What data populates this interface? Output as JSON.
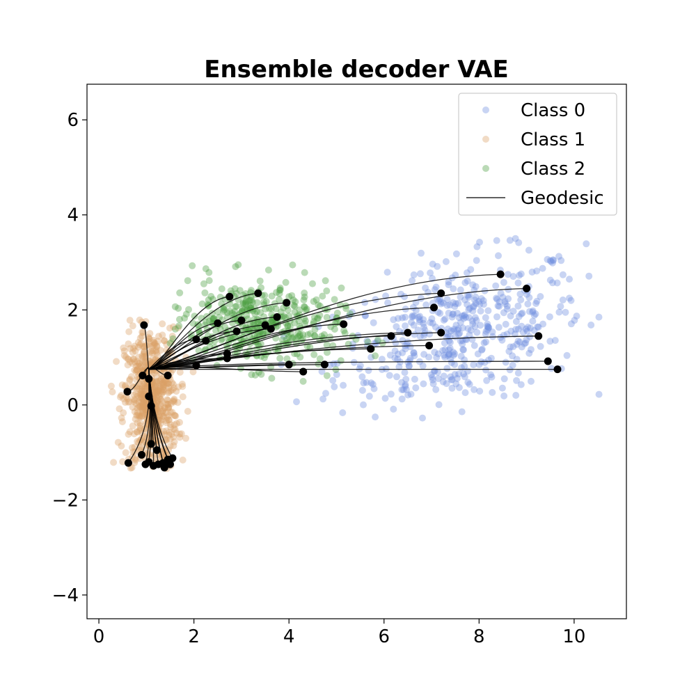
{
  "chart_data": {
    "type": "scatter",
    "title": "Ensemble decoder VAE",
    "xlabel": "",
    "ylabel": "",
    "xlim": [
      -0.25,
      11.1
    ],
    "ylim": [
      -4.5,
      6.75
    ],
    "x_ticks": [
      0,
      2,
      4,
      6,
      8,
      10
    ],
    "y_ticks": [
      -4,
      -2,
      0,
      2,
      4,
      6
    ],
    "x_tick_labels": [
      "0",
      "2",
      "4",
      "6",
      "8",
      "10"
    ],
    "y_tick_labels": [
      "−4",
      "−2",
      "0",
      "2",
      "4",
      "6"
    ],
    "grid": false,
    "legend_position": "top-right",
    "series": [
      {
        "name": "Class 0",
        "color": "#6f8fe0",
        "alpha": 0.38,
        "kind": "scatter",
        "count": 480,
        "distribution": {
          "x_center": 7.6,
          "x_spread": 1.3,
          "x_min": 3.3,
          "x_max": 10.6,
          "y_center": 1.5,
          "y_spread": 0.75,
          "y_min": -0.3,
          "y_max": 3.7,
          "slope": 0.22
        }
      },
      {
        "name": "Class 1",
        "color": "#d9a066",
        "alpha": 0.38,
        "kind": "scatter",
        "count": 650,
        "distribution": {
          "x_center": 1.1,
          "x_spread": 0.28,
          "x_min": 0.25,
          "x_max": 2.6,
          "y_center": 0.1,
          "y_spread": 0.75,
          "y_min": -1.35,
          "y_max": 1.85,
          "slope": 0
        }
      },
      {
        "name": "Class 2",
        "color": "#4a9e3e",
        "alpha": 0.38,
        "kind": "scatter",
        "count": 420,
        "distribution": {
          "x_center": 3.3,
          "x_spread": 0.9,
          "x_min": 1.5,
          "x_max": 7.0,
          "y_center": 1.7,
          "y_spread": 0.45,
          "y_min": -0.2,
          "y_max": 3.0,
          "slope": -0.08
        }
      },
      {
        "name": "Geodesic",
        "color": "#000000",
        "kind": "line"
      }
    ],
    "geodesics": {
      "hub": [
        1.05,
        0.75
      ],
      "from_hub": [
        [
          8.45,
          2.75
        ],
        [
          9.0,
          2.45
        ],
        [
          7.2,
          2.35
        ],
        [
          7.05,
          2.05
        ],
        [
          9.25,
          1.45
        ],
        [
          9.65,
          0.75
        ],
        [
          9.45,
          0.92
        ],
        [
          7.2,
          1.52
        ],
        [
          6.5,
          1.52
        ],
        [
          6.15,
          1.45
        ],
        [
          6.95,
          1.25
        ],
        [
          5.15,
          1.7
        ],
        [
          5.72,
          1.18
        ],
        [
          4.75,
          0.85
        ],
        [
          4.3,
          0.7
        ],
        [
          4.0,
          0.85
        ],
        [
          3.35,
          2.35
        ],
        [
          2.75,
          2.28
        ],
        [
          3.95,
          2.15
        ],
        [
          3.75,
          1.85
        ],
        [
          3.0,
          1.78
        ],
        [
          3.5,
          1.68
        ],
        [
          3.62,
          1.6
        ],
        [
          2.5,
          1.72
        ],
        [
          2.9,
          1.55
        ],
        [
          2.25,
          1.35
        ],
        [
          2.05,
          1.38
        ],
        [
          2.7,
          1.08
        ],
        [
          2.7,
          0.98
        ],
        [
          2.05,
          0.83
        ],
        [
          1.45,
          0.62
        ],
        [
          1.05,
          0.55
        ],
        [
          0.92,
          0.62
        ],
        [
          0.95,
          1.68
        ],
        [
          0.6,
          0.28
        ],
        [
          1.05,
          0.18
        ]
      ],
      "from_bottom_hub": [
        1.15,
        -0.45
      ],
      "bottom_ends": [
        [
          0.62,
          -1.22
        ],
        [
          0.9,
          -1.05
        ],
        [
          0.98,
          -1.25
        ],
        [
          1.05,
          -1.2
        ],
        [
          1.1,
          -0.82
        ],
        [
          1.15,
          -1.28
        ],
        [
          1.22,
          -0.95
        ],
        [
          1.25,
          -1.25
        ],
        [
          1.35,
          -1.22
        ],
        [
          1.38,
          -1.32
        ],
        [
          1.45,
          -1.15
        ],
        [
          1.5,
          -1.25
        ],
        [
          1.55,
          -1.12
        ],
        [
          1.1,
          -0.02
        ]
      ]
    }
  },
  "legend": {
    "items": [
      "Class 0",
      "Class 1",
      "Class 2",
      "Geodesic"
    ]
  }
}
